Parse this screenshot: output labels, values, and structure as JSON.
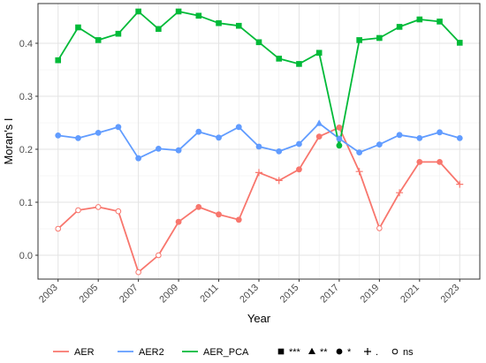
{
  "chart_data": {
    "type": "line",
    "xlabel": "Year",
    "ylabel": "Moran's I",
    "x": [
      2003,
      2004,
      2005,
      2006,
      2007,
      2008,
      2009,
      2010,
      2011,
      2012,
      2013,
      2014,
      2015,
      2016,
      2017,
      2018,
      2019,
      2020,
      2021,
      2022,
      2023
    ],
    "x_ticks": [
      2003,
      2005,
      2007,
      2009,
      2011,
      2013,
      2015,
      2017,
      2019,
      2021,
      2023
    ],
    "y_ticks": [
      0.0,
      0.1,
      0.2,
      0.3,
      0.4
    ],
    "y_tick_labels": [
      "0.0",
      "0.1",
      "0.2",
      "0.3",
      "0.4"
    ],
    "xlim": [
      2002,
      2024
    ],
    "ylim": [
      -0.045,
      0.475
    ],
    "grid": true,
    "legend_position": "bottom",
    "series": [
      {
        "name": "AER",
        "color": "#f8766d",
        "values": [
          0.05,
          0.085,
          0.091,
          0.083,
          -0.032,
          0.0,
          0.063,
          0.091,
          0.077,
          0.067,
          0.156,
          0.141,
          0.162,
          0.224,
          0.241,
          0.158,
          0.051,
          0.118,
          0.176,
          0.176,
          0.134
        ],
        "significance": [
          "ns",
          "ns",
          "ns",
          "ns",
          "ns",
          "ns",
          "*",
          "*",
          "*",
          "*",
          "+",
          "+",
          "*",
          "*",
          "*",
          "+",
          "ns",
          "+",
          "*",
          "*",
          "+"
        ]
      },
      {
        "name": "AER2",
        "color": "#619cff",
        "values": [
          0.226,
          0.221,
          0.231,
          0.242,
          0.183,
          0.201,
          0.198,
          0.233,
          0.222,
          0.242,
          0.205,
          0.196,
          0.21,
          0.249,
          0.22,
          0.194,
          0.209,
          0.227,
          0.221,
          0.232,
          0.221
        ],
        "significance": [
          "*",
          "*",
          "*",
          "*",
          "*",
          "*",
          "*",
          "*",
          "*",
          "*",
          "*",
          "*",
          "*",
          "**",
          "*",
          "*",
          "*",
          "*",
          "*",
          "*",
          "*"
        ]
      },
      {
        "name": "AER_PCA",
        "color": "#00ba38",
        "values": [
          0.368,
          0.43,
          0.406,
          0.418,
          0.46,
          0.427,
          0.46,
          0.452,
          0.438,
          0.433,
          0.402,
          0.371,
          0.361,
          0.382,
          0.207,
          0.406,
          0.41,
          0.431,
          0.445,
          0.441,
          0.401
        ],
        "significance": [
          "***",
          "***",
          "***",
          "***",
          "***",
          "***",
          "***",
          "***",
          "***",
          "***",
          "***",
          "***",
          "***",
          "***",
          "*",
          "***",
          "***",
          "***",
          "***",
          "***",
          "***"
        ]
      }
    ],
    "significance_legend": [
      {
        "key": "***",
        "label": "***",
        "shape": "square"
      },
      {
        "key": "**",
        "label": "**",
        "shape": "triangle"
      },
      {
        "key": "*",
        "label": "*",
        "shape": "circle"
      },
      {
        "key": "+",
        "label": ".",
        "shape": "plus"
      },
      {
        "key": "ns",
        "label": "ns",
        "shape": "open-circle"
      }
    ]
  }
}
